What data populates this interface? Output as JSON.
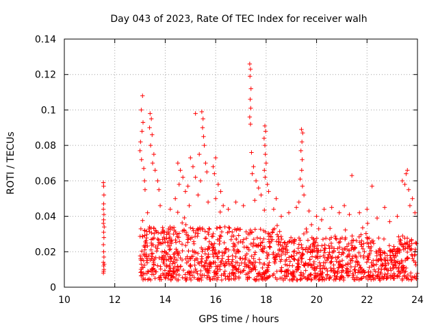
{
  "chart_data": {
    "type": "scatter",
    "title": "Day 043 of 2023, Rate Of TEC Index for receiver walh",
    "xlabel": "GPS time / hours",
    "ylabel": "ROTI / TECUs",
    "xlim": [
      10,
      24
    ],
    "ylim": [
      0,
      0.14
    ],
    "x_ticks": [
      10,
      12,
      14,
      16,
      18,
      20,
      22,
      24
    ],
    "x_tick_labels": [
      "10",
      "12",
      "14",
      "16",
      "18",
      "20",
      "22",
      "24"
    ],
    "y_ticks": [
      0,
      0.02,
      0.04,
      0.06,
      0.08,
      0.1,
      0.12,
      0.14
    ],
    "y_tick_labels": [
      "0",
      "0.02",
      "0.04",
      "0.06",
      "0.08",
      "0.1",
      "0.12",
      "0.14"
    ],
    "grid": true,
    "marker": "+",
    "color": "#ff0000",
    "series": [
      {
        "points": [
          [
            11.55,
            0.059
          ],
          [
            11.56,
            0.057
          ],
          [
            11.57,
            0.052
          ],
          [
            11.56,
            0.047
          ],
          [
            11.55,
            0.044
          ],
          [
            11.57,
            0.041
          ],
          [
            11.56,
            0.038
          ],
          [
            11.55,
            0.036
          ],
          [
            11.58,
            0.034
          ],
          [
            11.56,
            0.031
          ],
          [
            11.57,
            0.028
          ],
          [
            11.55,
            0.024
          ],
          [
            11.56,
            0.02
          ],
          [
            11.57,
            0.017
          ],
          [
            11.55,
            0.014
          ],
          [
            11.56,
            0.012
          ],
          [
            11.57,
            0.01
          ],
          [
            11.55,
            0.008
          ],
          [
            11.58,
            0.013
          ],
          [
            11.56,
            0.009
          ],
          [
            13.1,
            0.108
          ],
          [
            13.05,
            0.1
          ],
          [
            13.12,
            0.093
          ],
          [
            13.08,
            0.088
          ],
          [
            13.02,
            0.082
          ],
          [
            13.0,
            0.077
          ],
          [
            13.06,
            0.072
          ],
          [
            13.15,
            0.067
          ],
          [
            13.18,
            0.06
          ],
          [
            13.2,
            0.055
          ],
          [
            13.4,
            0.098
          ],
          [
            13.45,
            0.095
          ],
          [
            13.38,
            0.09
          ],
          [
            13.48,
            0.086
          ],
          [
            13.42,
            0.08
          ],
          [
            13.55,
            0.075
          ],
          [
            13.5,
            0.07
          ],
          [
            13.6,
            0.066
          ],
          [
            13.7,
            0.06
          ],
          [
            13.75,
            0.055
          ],
          [
            14.5,
            0.07
          ],
          [
            14.6,
            0.066
          ],
          [
            14.7,
            0.062
          ],
          [
            14.55,
            0.058
          ],
          [
            14.8,
            0.054
          ],
          [
            15.0,
            0.073
          ],
          [
            15.1,
            0.068
          ],
          [
            15.2,
            0.062
          ],
          [
            14.9,
            0.057
          ],
          [
            15.3,
            0.052
          ],
          [
            15.2,
            0.098
          ],
          [
            15.45,
            0.099
          ],
          [
            15.5,
            0.095
          ],
          [
            15.48,
            0.09
          ],
          [
            15.52,
            0.085
          ],
          [
            15.55,
            0.08
          ],
          [
            15.35,
            0.075
          ],
          [
            15.6,
            0.07
          ],
          [
            15.65,
            0.065
          ],
          [
            15.4,
            0.06
          ],
          [
            15.9,
            0.068
          ],
          [
            16.0,
            0.073
          ],
          [
            15.95,
            0.064
          ],
          [
            16.1,
            0.058
          ],
          [
            16.2,
            0.054
          ],
          [
            17.35,
            0.126
          ],
          [
            17.38,
            0.123
          ],
          [
            17.36,
            0.119
          ],
          [
            17.4,
            0.112
          ],
          [
            17.37,
            0.106
          ],
          [
            17.39,
            0.101
          ],
          [
            17.35,
            0.096
          ],
          [
            17.38,
            0.092
          ],
          [
            17.42,
            0.076
          ],
          [
            17.5,
            0.068
          ],
          [
            17.45,
            0.064
          ],
          [
            17.6,
            0.06
          ],
          [
            17.7,
            0.056
          ],
          [
            17.8,
            0.052
          ],
          [
            17.55,
            0.049
          ],
          [
            17.95,
            0.091
          ],
          [
            17.98,
            0.088
          ],
          [
            17.92,
            0.084
          ],
          [
            17.95,
            0.08
          ],
          [
            17.97,
            0.075
          ],
          [
            18.0,
            0.07
          ],
          [
            17.93,
            0.066
          ],
          [
            17.96,
            0.062
          ],
          [
            18.05,
            0.058
          ],
          [
            18.1,
            0.054
          ],
          [
            19.4,
            0.089
          ],
          [
            19.45,
            0.087
          ],
          [
            19.42,
            0.082
          ],
          [
            19.38,
            0.077
          ],
          [
            19.43,
            0.072
          ],
          [
            19.41,
            0.066
          ],
          [
            19.35,
            0.061
          ],
          [
            19.44,
            0.057
          ],
          [
            19.5,
            0.052
          ],
          [
            19.3,
            0.048
          ],
          [
            21.4,
            0.063
          ],
          [
            22.2,
            0.057
          ],
          [
            22.7,
            0.045
          ],
          [
            23.4,
            0.06
          ],
          [
            23.55,
            0.064
          ],
          [
            23.6,
            0.066
          ],
          [
            23.5,
            0.058
          ],
          [
            23.65,
            0.055
          ],
          [
            23.8,
            0.05
          ],
          [
            23.7,
            0.046
          ],
          [
            13.3,
            0.042
          ],
          [
            13.8,
            0.046
          ],
          [
            14.2,
            0.044
          ],
          [
            14.4,
            0.05
          ],
          [
            14.95,
            0.046
          ],
          [
            15.7,
            0.048
          ],
          [
            16.3,
            0.046
          ],
          [
            16.5,
            0.044
          ],
          [
            16.8,
            0.048
          ],
          [
            17.1,
            0.046
          ],
          [
            18.3,
            0.044
          ],
          [
            18.6,
            0.04
          ],
          [
            18.9,
            0.042
          ],
          [
            19.2,
            0.045
          ],
          [
            19.7,
            0.043
          ],
          [
            20.0,
            0.04
          ],
          [
            20.3,
            0.044
          ],
          [
            20.6,
            0.045
          ],
          [
            20.9,
            0.042
          ],
          [
            21.1,
            0.046
          ],
          [
            21.3,
            0.041
          ],
          [
            21.7,
            0.042
          ],
          [
            22.0,
            0.044
          ],
          [
            22.4,
            0.039
          ],
          [
            22.9,
            0.037
          ],
          [
            23.2,
            0.04
          ],
          [
            23.9,
            0.042
          ],
          [
            16.0,
            0.05
          ],
          [
            18.4,
            0.05
          ],
          [
            20.2,
            0.038
          ]
        ]
      }
    ]
  }
}
